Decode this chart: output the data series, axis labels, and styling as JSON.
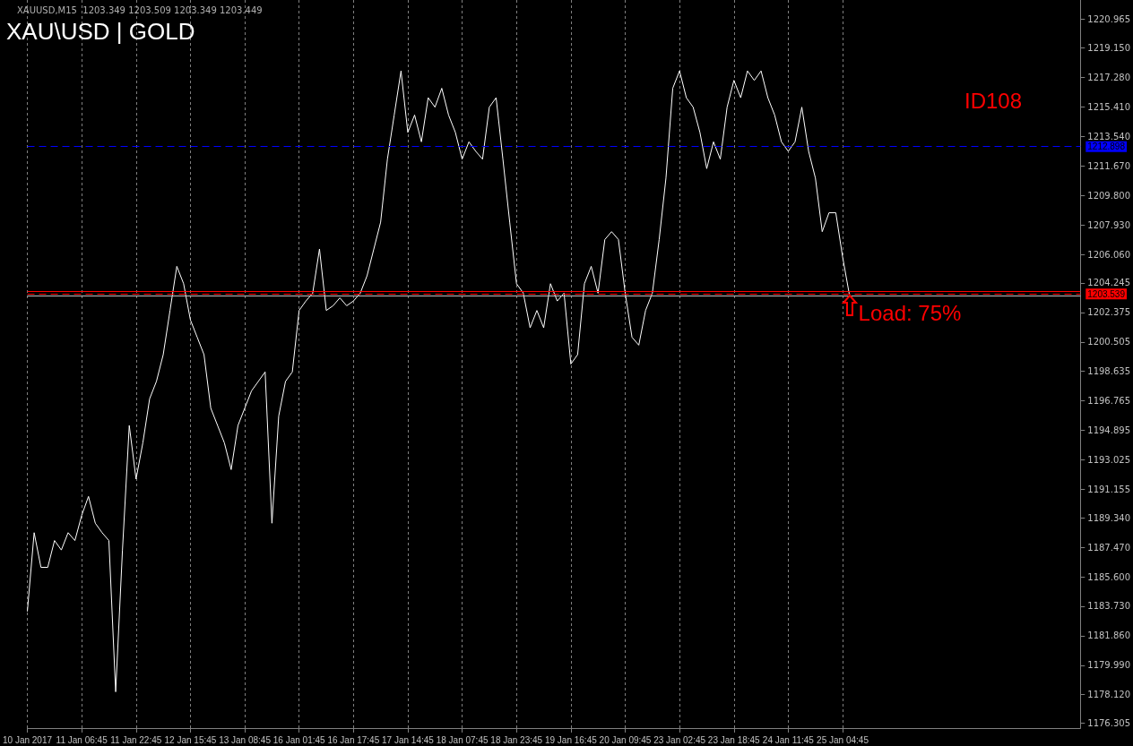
{
  "chart_data": {
    "type": "line",
    "title": "XAU\\USD | GOLD",
    "subtitle": "XAUUSD,M15  1203.349 1203.509 1203.349 1203.449",
    "categories": [
      "10 Jan 2017",
      null,
      null,
      null,
      null,
      null,
      null,
      null,
      "11 Jan 06:45",
      null,
      null,
      null,
      null,
      null,
      null,
      null,
      "11 Jan 22:45",
      null,
      null,
      null,
      null,
      null,
      null,
      null,
      "12 Jan 15:45",
      null,
      null,
      null,
      null,
      null,
      null,
      null,
      "13 Jan 08:45",
      null,
      null,
      null,
      null,
      null,
      null,
      null,
      "16 Jan 01:45",
      null,
      null,
      null,
      null,
      null,
      null,
      null,
      "16 Jan 17:45",
      null,
      null,
      null,
      null,
      null,
      null,
      null,
      "17 Jan 14:45",
      null,
      null,
      null,
      null,
      null,
      null,
      null,
      "18 Jan 07:45",
      null,
      null,
      null,
      null,
      null,
      null,
      null,
      "18 Jan 23:45",
      null,
      null,
      null,
      null,
      null,
      null,
      null,
      "19 Jan 16:45",
      null,
      null,
      null,
      null,
      null,
      null,
      null,
      "20 Jan 09:45",
      null,
      null,
      null,
      null,
      null,
      null,
      null,
      "23 Jan 02:45",
      null,
      null,
      null,
      null,
      null,
      null,
      null,
      "23 Jan 18:45",
      null,
      null,
      null,
      null,
      null,
      null,
      null,
      "24 Jan 11:45",
      null,
      null,
      null,
      null,
      null,
      null,
      null,
      "25 Jan 04:45",
      null,
      null,
      null,
      null,
      null,
      null,
      null,
      null,
      null,
      null,
      null,
      null,
      null,
      null,
      null,
      null,
      null,
      null,
      null,
      null,
      null,
      null,
      null,
      null,
      null,
      null,
      null,
      null,
      null,
      null,
      null,
      null,
      null,
      null,
      null
    ],
    "series": [
      {
        "color": "#ffffff",
        "values": [
          1183.4,
          1188.4,
          1186.2,
          1186.2,
          1187.9,
          1187.3,
          1188.4,
          1187.9,
          1189.5,
          1190.7,
          1189.0,
          1188.4,
          1187.9,
          1178.3,
          1187.3,
          1195.2,
          1191.8,
          1194.1,
          1196.9,
          1198.0,
          1199.7,
          1202.5,
          1205.3,
          1204.2,
          1201.9,
          1200.8,
          1199.7,
          1196.3,
          1195.2,
          1194.1,
          1192.4,
          1195.2,
          1196.3,
          1197.4,
          1198.0,
          1198.6,
          1189.0,
          1195.8,
          1198.0,
          1198.6,
          1202.5,
          1203.1,
          1203.6,
          1206.4,
          1202.5,
          1202.8,
          1203.3,
          1202.8,
          1203.1,
          1203.6,
          1204.7,
          1206.4,
          1208.1,
          1212.1,
          1214.9,
          1217.7,
          1213.8,
          1214.9,
          1213.2,
          1216.0,
          1215.4,
          1216.6,
          1214.9,
          1213.8,
          1212.1,
          1213.2,
          1212.6,
          1212.1,
          1215.4,
          1216.0,
          1212.1,
          1208.1,
          1204.2,
          1203.6,
          1201.4,
          1202.5,
          1201.4,
          1204.2,
          1203.1,
          1203.6,
          1199.1,
          1199.7,
          1204.2,
          1205.3,
          1203.6,
          1207.0,
          1207.5,
          1207.0,
          1203.6,
          1200.8,
          1200.3,
          1202.5,
          1203.6,
          1207.0,
          1210.9,
          1216.6,
          1217.7,
          1216.0,
          1215.4,
          1213.8,
          1211.5,
          1213.2,
          1212.1,
          1215.4,
          1217.1,
          1216.0,
          1217.7,
          1217.1,
          1217.7,
          1216.0,
          1214.9,
          1213.2,
          1212.6,
          1213.2,
          1215.4,
          1212.6,
          1210.9,
          1207.5,
          1208.7,
          1208.7,
          1205.9,
          1203.5,
          null,
          null,
          null,
          null,
          null,
          null,
          null,
          null,
          null,
          null,
          null,
          null,
          null,
          null,
          null,
          null,
          null,
          null,
          null,
          null,
          null,
          null,
          null,
          null,
          null,
          null,
          null,
          null,
          null,
          null,
          null,
          null,
          null,
          null
        ]
      }
    ],
    "ylim": [
      1176.0,
      1222.2
    ],
    "yticks": [
      1220.965,
      {
        "value": 1219.15,
        "label": "1219.150"
      },
      {
        "value": 1217.28,
        "label": "1217.280"
      },
      {
        "value": 1215.41,
        "label": "1215.410"
      },
      {
        "value": 1213.54,
        "label": "1213.540"
      },
      {
        "value": 1211.67,
        "label": "1211.670"
      },
      {
        "value": 1209.8,
        "label": "1209.800"
      },
      {
        "value": 1207.93,
        "label": "1207.930"
      },
      {
        "value": 1206.06,
        "label": "1206.060"
      },
      1204.245,
      1202.375,
      1200.505,
      1198.635,
      1196.765,
      1194.895,
      1193.025,
      1191.155,
      {
        "value": 1189.34,
        "label": "1189.340"
      },
      {
        "value": 1187.47,
        "label": "1187.470"
      },
      {
        "value": 1185.6,
        "label": "1185.600"
      },
      {
        "value": 1183.73,
        "label": "1183.730"
      },
      {
        "value": 1181.86,
        "label": "1181.860"
      },
      {
        "value": 1179.99,
        "label": "1179.990"
      },
      {
        "value": 1178.12,
        "label": "1178.120"
      },
      1176.305
    ],
    "ref_lines": [
      {
        "axis": "y",
        "value": 1212.898,
        "label": "1212.898",
        "color": "#0000ff",
        "line_style": "dashed"
      },
      {
        "axis": "y",
        "value": 1203.7,
        "label": null,
        "color": "#ff0000",
        "line_style": "solid"
      },
      {
        "axis": "y",
        "value": 1203.539,
        "label": "1203.539",
        "color": "#ff0000",
        "line_style": "dashed"
      },
      {
        "axis": "y",
        "value": 1203.449,
        "label": null,
        "color": "#c0c0c0",
        "line_style": "solid"
      }
    ],
    "annotations": [
      "ID108",
      {
        "text": "Load: 75%",
        "y": 1203.5
      }
    ],
    "grid": "x"
  }
}
